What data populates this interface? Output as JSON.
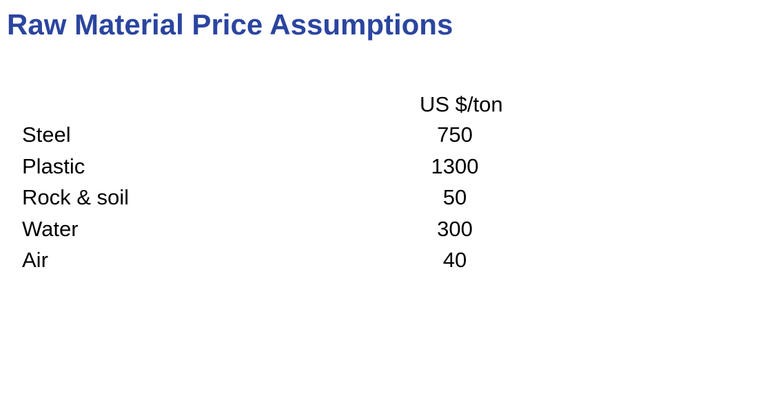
{
  "title": "Raw Material Price Assumptions",
  "unit_header": "US $/ton",
  "materials": [
    {
      "name": "Steel",
      "price": "750"
    },
    {
      "name": "Plastic",
      "price": "1300"
    },
    {
      "name": "Rock & soil",
      "price": "50"
    },
    {
      "name": "Water",
      "price": "300"
    },
    {
      "name": "Air",
      "price": "40"
    }
  ],
  "colors": {
    "title": "#2b45a0",
    "text": "#000000",
    "background": "#ffffff"
  }
}
